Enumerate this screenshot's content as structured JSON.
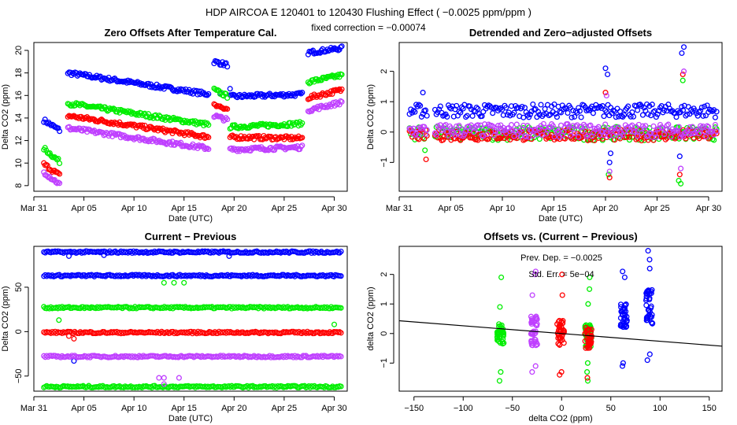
{
  "header": {
    "main_title": "HDP   AIRCOA E   120401 to 120430   Flushing Effect ( −0.0025 ppm/ppm )",
    "subtitle": "fixed correction = −0.00074"
  },
  "colors": {
    "blue": "#0000ff",
    "green": "#00ee00",
    "red": "#ff0000",
    "purple": "#bf3fff",
    "fit": "#000000"
  },
  "chart_data": [
    {
      "id": "p1",
      "type": "scatter",
      "title": "Zero Offsets After Temperature Cal.",
      "xlabel": "Date (UTC)",
      "ylabel": "Delta CO2 (ppm)",
      "xlim": [
        0,
        31.3
      ],
      "ylim": [
        7.5,
        20.7
      ],
      "xticks": [
        0,
        5,
        10,
        15,
        20,
        25,
        30
      ],
      "xticklabels": [
        "Mar 31",
        "Apr 05",
        "Apr 10",
        "Apr 15",
        "Apr 20",
        "Apr 25",
        "Apr 30"
      ],
      "yticks": [
        8,
        10,
        12,
        14,
        16,
        18,
        20
      ],
      "yticklabels": [
        "8",
        "10",
        "12",
        "14",
        "16",
        "18",
        "20"
      ],
      "series": [
        {
          "name": "blue",
          "color": "#0000ff",
          "segments": [
            [
              1.0,
              13.8,
              2.6,
              12.9
            ],
            [
              3.4,
              18.0,
              17.5,
              16.1
            ],
            [
              18.0,
              19.0,
              19.4,
              18.7
            ],
            [
              19.6,
              15.9,
              26.9,
              16.1
            ],
            [
              27.4,
              19.8,
              30.8,
              20.2
            ]
          ],
          "spikes": [
            [
              18.6,
              16.2
            ],
            [
              19.6,
              16.6
            ]
          ]
        },
        {
          "name": "green",
          "color": "#00ee00",
          "segments": [
            [
              1.0,
              11.3,
              2.6,
              10.1
            ],
            [
              3.4,
              15.3,
              17.5,
              13.4
            ],
            [
              18.0,
              16.5,
              19.4,
              15.9
            ],
            [
              19.6,
              13.2,
              26.9,
              13.5
            ],
            [
              27.4,
              17.2,
              30.8,
              17.8
            ]
          ],
          "spikes": []
        },
        {
          "name": "red",
          "color": "#ff0000",
          "segments": [
            [
              1.0,
              9.9,
              2.6,
              8.9
            ],
            [
              3.4,
              14.2,
              17.5,
              12.3
            ],
            [
              18.0,
              15.3,
              19.4,
              14.6
            ],
            [
              19.6,
              12.3,
              26.9,
              12.2
            ],
            [
              27.4,
              15.8,
              30.8,
              16.5
            ]
          ],
          "spikes": []
        },
        {
          "name": "purple",
          "color": "#bf3fff",
          "segments": [
            [
              1.0,
              9.2,
              2.6,
              8.1
            ],
            [
              3.4,
              13.1,
              17.5,
              11.3
            ],
            [
              18.0,
              14.2,
              19.4,
              13.8
            ],
            [
              19.6,
              11.2,
              26.9,
              11.4
            ],
            [
              27.4,
              14.7,
              30.8,
              15.4
            ]
          ],
          "spikes": []
        }
      ]
    },
    {
      "id": "p2",
      "type": "scatter",
      "title": "Detrended and Zero−adjusted Offsets",
      "xlabel": "Date (UTC)",
      "ylabel": "Delta CO2 (ppm)",
      "xlim": [
        0,
        31.3
      ],
      "ylim": [
        -1.95,
        2.95
      ],
      "xticks": [
        0,
        5,
        10,
        15,
        20,
        25,
        30
      ],
      "xticklabels": [
        "Mar 31",
        "Apr 05",
        "Apr 10",
        "Apr 15",
        "Apr 20",
        "Apr 25",
        "Apr 30"
      ],
      "yticks": [
        -1,
        0,
        1,
        2
      ],
      "yticklabels": [
        "−1",
        "0",
        "1",
        "2"
      ],
      "series": [
        {
          "name": "blue",
          "color": "#0000ff",
          "base": 0.7,
          "spread": 0.22,
          "spikes": [
            [
              2.3,
              1.3
            ],
            [
              20.0,
              2.1
            ],
            [
              20.2,
              1.9
            ],
            [
              20.4,
              -1.0
            ],
            [
              20.5,
              -0.7
            ],
            [
              27.4,
              2.6
            ],
            [
              27.6,
              2.8
            ],
            [
              27.2,
              -0.8
            ]
          ]
        },
        {
          "name": "green",
          "color": "#00ee00",
          "base": -0.05,
          "spread": 0.22,
          "spikes": [
            [
              2.5,
              -0.6
            ],
            [
              20.3,
              -1.4
            ],
            [
              27.1,
              -1.6
            ],
            [
              27.3,
              -1.7
            ],
            [
              27.5,
              1.7
            ]
          ]
        },
        {
          "name": "red",
          "color": "#ff0000",
          "base": -0.1,
          "spread": 0.18,
          "spikes": [
            [
              2.6,
              -0.9
            ],
            [
              20.0,
              1.3
            ],
            [
              20.4,
              -1.5
            ],
            [
              27.2,
              -1.4
            ],
            [
              27.5,
              1.9
            ]
          ]
        },
        {
          "name": "purple",
          "color": "#bf3fff",
          "base": 0.05,
          "spread": 0.22,
          "spikes": [
            [
              20.1,
              1.2
            ],
            [
              20.4,
              -1.3
            ],
            [
              27.3,
              -1.2
            ],
            [
              27.6,
              2.0
            ]
          ]
        }
      ]
    },
    {
      "id": "p3",
      "type": "scatter",
      "title": "Current − Previous",
      "xlabel": "Date (UTC)",
      "ylabel": "Delta CO2 (ppm)",
      "xlim": [
        0,
        31.3
      ],
      "ylim": [
        -67,
        96
      ],
      "xticks": [
        0,
        5,
        10,
        15,
        20,
        25,
        30
      ],
      "xticklabels": [
        "Mar 31",
        "Apr 05",
        "Apr 10",
        "Apr 15",
        "Apr 20",
        "Apr 25",
        "Apr 30"
      ],
      "yticks": [
        -50,
        0,
        50
      ],
      "yticklabels": [
        "−50",
        "0",
        "50"
      ],
      "series": [
        {
          "name": "blue",
          "color": "#0000ff",
          "rows": [
            89.5,
            63
          ],
          "start": 1.0,
          "spikes": [
            [
              3.5,
              85
            ],
            [
              7.0,
              86
            ],
            [
              19.5,
              85
            ],
            [
              4.0,
              -33
            ]
          ]
        },
        {
          "name": "green",
          "color": "#00ee00",
          "rows": [
            27,
            -62
          ],
          "start": 1.0,
          "spikes": [
            [
              2.5,
              13
            ],
            [
              13.0,
              55
            ],
            [
              14.0,
              55
            ],
            [
              15.0,
              55
            ],
            [
              30.0,
              8
            ]
          ]
        },
        {
          "name": "red",
          "color": "#ff0000",
          "rows": [
            -1
          ],
          "start": 1.0,
          "spikes": [
            [
              3.5,
              -5
            ],
            [
              4.0,
              -8
            ]
          ]
        },
        {
          "name": "purple",
          "color": "#bf3fff",
          "rows": [
            -28
          ],
          "start": 1.0,
          "spikes": [
            [
              12.5,
              -52
            ],
            [
              13.0,
              -52
            ],
            [
              14.5,
              -52
            ],
            [
              13.0,
              -59
            ]
          ]
        }
      ]
    },
    {
      "id": "p4",
      "type": "scatter",
      "title": "Offsets vs. (Current − Previous)",
      "xlabel": "delta CO2 (ppm)",
      "ylabel": "delta CO2 (ppm)",
      "xlim": [
        -165,
        163
      ],
      "ylim": [
        -1.95,
        2.95
      ],
      "xticks": [
        -150,
        -100,
        -50,
        0,
        50,
        100,
        150
      ],
      "xticklabels": [
        "−150",
        "−100",
        "−50",
        "0",
        "50",
        "100",
        "150"
      ],
      "yticks": [
        -1,
        0,
        1,
        2
      ],
      "yticklabels": [
        "−1",
        "0",
        "1",
        "2"
      ],
      "annotation_dep": "Prev. Dep. =  −0.0025",
      "annotation_err": "Std. Err.  =  5e−04",
      "fit": {
        "slope": -0.0025,
        "intercept": 0.0
      },
      "clusters": [
        {
          "name": "green",
          "color": "#00ee00",
          "x": -62,
          "ymin": -0.35,
          "ymax": 0.35,
          "extras": [
            -1.3,
            -1.6,
            0.9,
            1.9
          ]
        },
        {
          "name": "purple",
          "color": "#bf3fff",
          "x": -28,
          "ymin": -0.4,
          "ymax": 0.6,
          "extras": [
            -1.1,
            -1.3,
            1.3,
            2.0,
            2.1
          ]
        },
        {
          "name": "red",
          "color": "#ff0000",
          "x": -1,
          "ymin": -0.4,
          "ymax": 0.45,
          "extras": [
            -1.3,
            -1.4,
            1.3,
            2.0
          ]
        },
        {
          "name": "green",
          "color": "#00ee00",
          "x": 27,
          "ymin": -0.45,
          "ymax": 0.3,
          "extras": [
            -1.0,
            -1.3,
            -1.6,
            1.0,
            1.5,
            1.9
          ]
        },
        {
          "name": "red",
          "color": "#ff0000",
          "x": 27,
          "ymin": -0.5,
          "ymax": 0.2,
          "extras": [
            -1.5
          ]
        },
        {
          "name": "blue",
          "color": "#0000ff",
          "x": 63,
          "ymin": 0.2,
          "ymax": 1.0,
          "extras": [
            -1.0,
            -1.1,
            1.9,
            2.1
          ]
        },
        {
          "name": "blue",
          "color": "#0000ff",
          "x": 89,
          "ymin": 0.3,
          "ymax": 1.5,
          "extras": [
            -0.7,
            -0.9,
            2.2,
            2.5,
            2.8
          ]
        }
      ]
    }
  ]
}
